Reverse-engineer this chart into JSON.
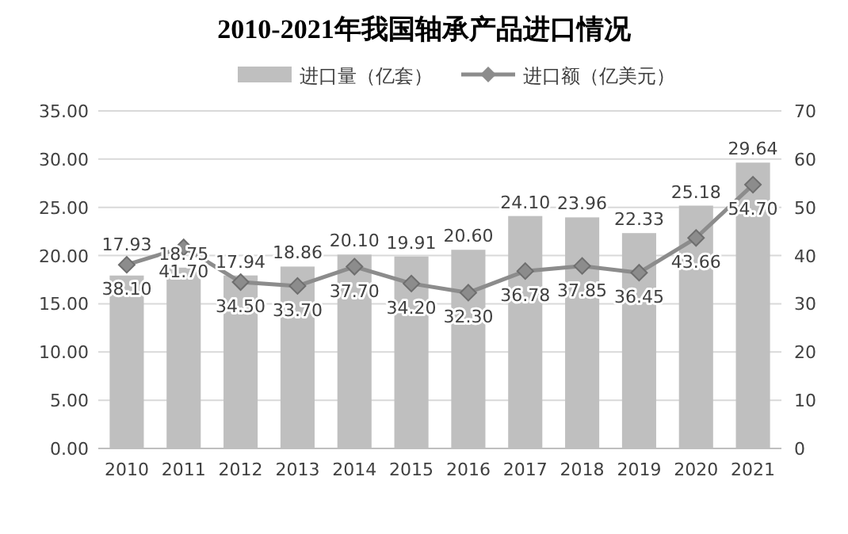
{
  "chart_data": {
    "type": "bar",
    "title": "2010-2021年我国轴承产品进口情况",
    "categories": [
      "2010",
      "2011",
      "2012",
      "2013",
      "2014",
      "2015",
      "2016",
      "2017",
      "2018",
      "2019",
      "2020",
      "2021"
    ],
    "series": [
      {
        "name": "进口量（亿套）",
        "color": "#bfbfbf",
        "values": [
          17.93,
          18.75,
          17.94,
          18.86,
          20.1,
          19.91,
          20.6,
          24.1,
          23.96,
          22.33,
          25.18,
          29.64
        ],
        "value_labels": [
          "17.93",
          "18.75",
          "17.94",
          "18.86",
          "20.10",
          "19.91",
          "20.60",
          "24.10",
          "23.96",
          "22.33",
          "25.18",
          "29.64"
        ]
      },
      {
        "name": "进口额（亿美元）",
        "type": "line",
        "axis": "y2",
        "color": "#8c8c8c",
        "marker": "diamond",
        "values": [
          38.1,
          41.7,
          34.5,
          33.7,
          37.7,
          34.2,
          32.3,
          36.78,
          37.85,
          36.45,
          43.66,
          54.7
        ],
        "value_labels": [
          "38.10",
          "41.70",
          "34.50",
          "33.70",
          "37.70",
          "34.20",
          "32.30",
          "36.78",
          "37.85",
          "36.45",
          "43.66",
          "54.70"
        ]
      }
    ],
    "ylim": [
      0,
      35
    ],
    "yticks": [
      {
        "value": 0,
        "label": "0.00"
      },
      {
        "value": 5,
        "label": "5.00"
      },
      {
        "value": 10,
        "label": "10.00"
      },
      {
        "value": 15,
        "label": "15.00"
      },
      {
        "value": 20,
        "label": "20.00"
      },
      {
        "value": 25,
        "label": "25.00"
      },
      {
        "value": 30,
        "label": "30.00"
      },
      {
        "value": 35,
        "label": "35.00"
      }
    ],
    "y2lim": [
      0,
      70
    ],
    "y2ticks": [
      0,
      10,
      20,
      30,
      40,
      50,
      60,
      70
    ],
    "grid": "y",
    "legend": "top"
  }
}
